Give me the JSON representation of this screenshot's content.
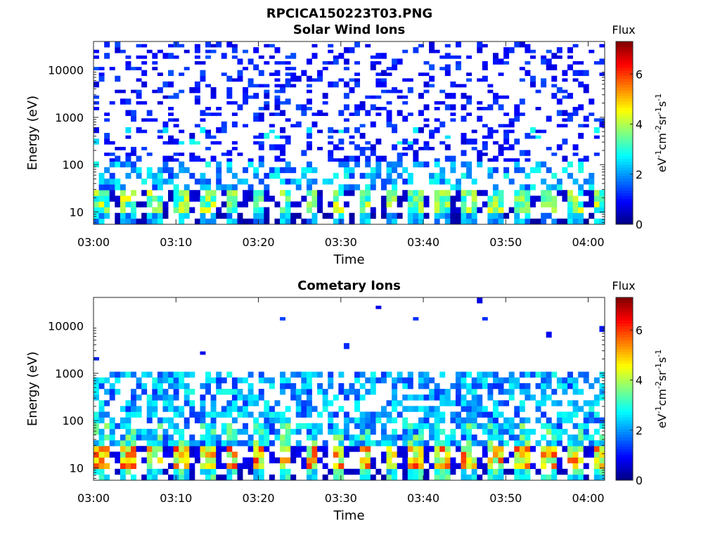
{
  "figure_title": "RPCICA150223T03.PNG",
  "colorbar": {
    "label": "Flux",
    "unit_parts": [
      {
        "t": "eV",
        "sup": false
      },
      {
        "t": "-1",
        "sup": true
      },
      {
        "t": "cm",
        "sup": false
      },
      {
        "t": "-2",
        "sup": true
      },
      {
        "t": "sr",
        "sup": false
      },
      {
        "t": "-1",
        "sup": true
      },
      {
        "t": "s",
        "sup": false
      },
      {
        "t": "-1",
        "sup": true
      }
    ],
    "range": [
      0,
      7.3
    ],
    "ticks": [
      0,
      2,
      4,
      6
    ],
    "tick_labels": [
      "0",
      "2",
      "4",
      "6"
    ],
    "colormap": "jet"
  },
  "chart_data": [
    {
      "type": "heatmap",
      "title": "Solar Wind Ions",
      "xlabel": "Time",
      "ylabel": "Energy (eV)",
      "x_range_min": [
        0,
        62
      ],
      "y_range_ev": [
        5.5,
        40000
      ],
      "y_scale": "log",
      "x_ticks_min": [
        0,
        10,
        20,
        30,
        40,
        50,
        60
      ],
      "x_tick_labels": [
        "03:00",
        "03:10",
        "03:20",
        "03:30",
        "03:40",
        "03:50",
        "04:00"
      ],
      "y_ticks": [
        10,
        100,
        1000,
        10000
      ],
      "y_tick_labels": [
        "10",
        "100",
        "1000",
        "10000"
      ],
      "grid": false,
      "energy_bins": 32,
      "time_bins": 96,
      "pattern": {
        "high_energy_background_prob": 0.33,
        "high_energy_start_bin": 10,
        "mid_band_prob": 0.45,
        "low_energy_peak_flux": 4.6,
        "pulse_period_min": 3.2,
        "secondary_bump_energy_bin": 15
      }
    },
    {
      "type": "heatmap",
      "title": "Cometary Ions",
      "xlabel": "Time",
      "ylabel": "Energy (eV)",
      "x_range_min": [
        0,
        62
      ],
      "y_range_ev": [
        5.5,
        40000
      ],
      "y_scale": "log",
      "x_ticks_min": [
        0,
        10,
        20,
        30,
        40,
        50,
        60
      ],
      "x_tick_labels": [
        "03:00",
        "03:10",
        "03:20",
        "03:30",
        "03:40",
        "03:50",
        "04:00"
      ],
      "y_ticks": [
        10,
        100,
        1000,
        10000
      ],
      "y_tick_labels": [
        "10",
        "100",
        "1000",
        "10000"
      ],
      "grid": false,
      "energy_bins": 32,
      "time_bins": 96,
      "pattern": {
        "high_energy_background_prob": 0.012,
        "high_energy_start_bin": 18,
        "mid_band_prob": 0.55,
        "low_energy_peak_flux": 6.2,
        "pulse_period_min": 3.2,
        "secondary_bump_energy_bin": 0
      }
    }
  ]
}
